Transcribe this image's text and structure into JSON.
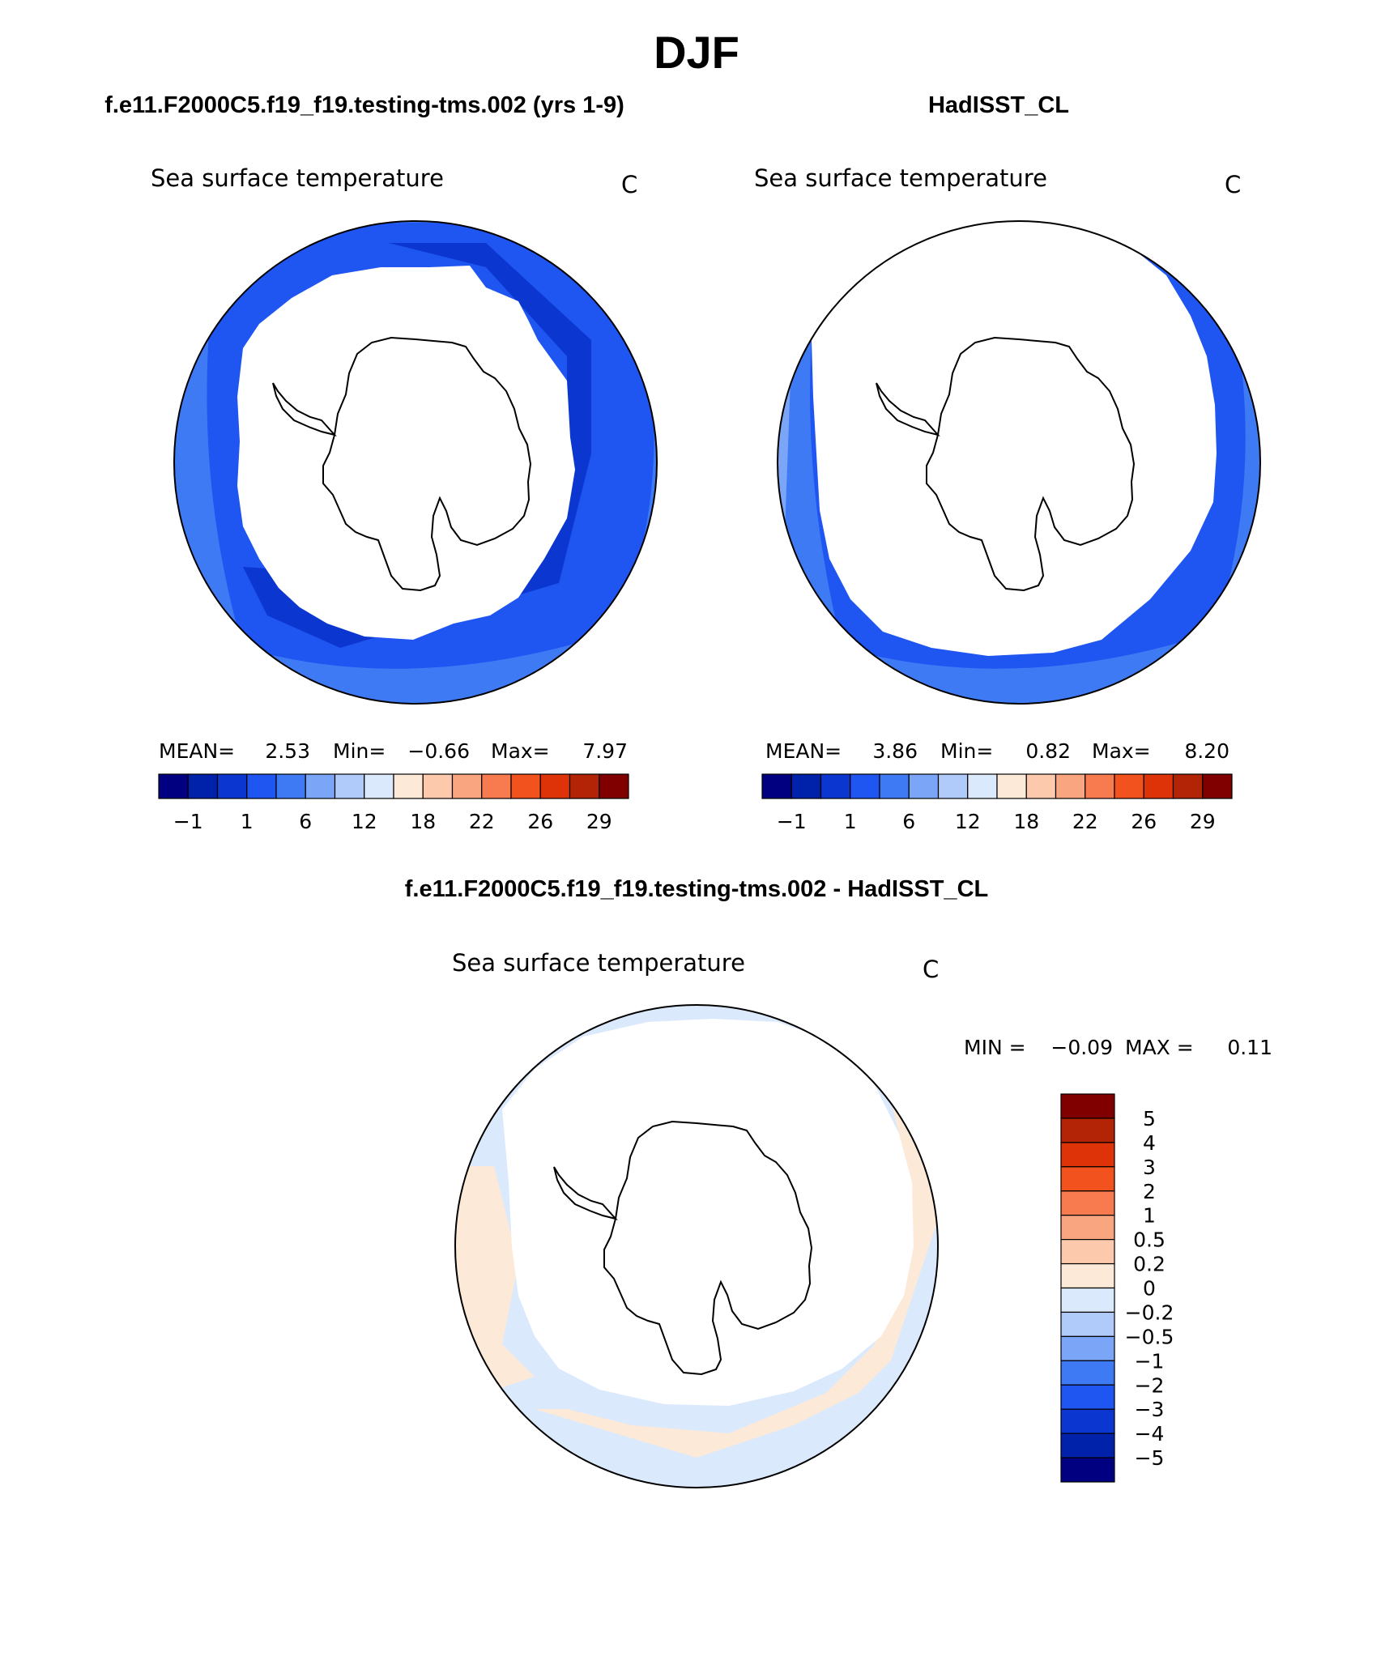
{
  "page_title": "DJF",
  "panels": {
    "model": {
      "header": "f.e11.F2000C5.f19_f19.testing-tms.002 (yrs 1-9)",
      "subtitle": "Sea surface temperature",
      "units": "C",
      "stats": {
        "mean_label": "MEAN=",
        "mean": "2.53",
        "min_label": "Min=",
        "min": "−0.66",
        "max_label": "Max=",
        "max": "7.97"
      }
    },
    "obs": {
      "header": "HadISST_CL",
      "subtitle": "Sea surface temperature",
      "units": "C",
      "stats": {
        "mean_label": "MEAN=",
        "mean": "3.86",
        "min_label": "Min=",
        "min": "0.82",
        "max_label": "Max=",
        "max": "8.20"
      }
    },
    "diff": {
      "header": "f.e11.F2000C5.f19_f19.testing-tms.002 - HadISST_CL",
      "subtitle": "Sea surface temperature",
      "units": "C",
      "stats": {
        "min_label": "MIN =",
        "min": "−0.09",
        "max_label": "MAX =",
        "max": "0.11"
      }
    }
  },
  "colorbar_abs": {
    "colors": [
      "#000080",
      "#0022aa",
      "#0b36d0",
      "#1f55f0",
      "#3f7af5",
      "#7ba6f7",
      "#b0cbfa",
      "#dbe9fc",
      "#fde9d8",
      "#fcc9ad",
      "#f9a57f",
      "#f77b4f",
      "#f2521d",
      "#de3208",
      "#b22405",
      "#800000"
    ],
    "tick_labels": [
      "−1",
      "1",
      "6",
      "12",
      "18",
      "22",
      "26",
      "29"
    ]
  },
  "colorbar_diff": {
    "colors": [
      "#800000",
      "#b22405",
      "#de3208",
      "#f2521d",
      "#f77b4f",
      "#f9a57f",
      "#fcc9ad",
      "#fde9d8",
      "#dbe9fc",
      "#b0cbfa",
      "#7ba6f7",
      "#3f7af5",
      "#1f55f0",
      "#0b36d0",
      "#0022aa",
      "#000080"
    ],
    "tick_labels": [
      "5",
      "4",
      "3",
      "2",
      "1",
      "0.5",
      "0.2",
      "0",
      "−0.2",
      "−0.5",
      "−1",
      "−2",
      "−3",
      "−4",
      "−5"
    ]
  },
  "map_colors": {
    "sst_very_dark": "#0b36d0",
    "sst_dark": "#1f55f0",
    "sst_mid": "#3f7af5",
    "sst_light": "#7ba6f7",
    "diff_warm": "#fde9d8",
    "diff_cool": "#dbe9fc"
  }
}
